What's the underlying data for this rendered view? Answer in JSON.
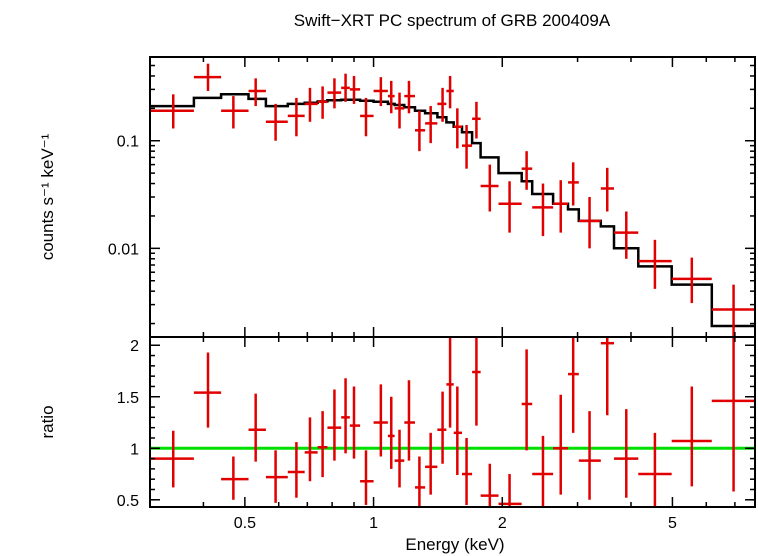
{
  "chart_data": [
    {
      "type": "line",
      "title": "Swift−XRT PC spectrum of GRB 200409A",
      "ylabel": "counts s⁻¹ keV⁻¹",
      "xlabel": "Energy (keV)",
      "x_scale": "log",
      "y_scale": "log",
      "xlim": [
        0.3,
        7.8
      ],
      "ylim": [
        0.0015,
        0.6
      ],
      "y_tick_labels": [
        "0.1",
        "0.01"
      ],
      "y_tick_values": [
        0.1,
        0.01
      ],
      "colors": {
        "data": "#e00000",
        "model": "#000000"
      },
      "data_points": [
        {
          "x": 0.34,
          "xlo": 0.3,
          "xhi": 0.38,
          "y": 0.19,
          "ylo": 0.13,
          "yhi": 0.27
        },
        {
          "x": 0.41,
          "xlo": 0.38,
          "xhi": 0.44,
          "y": 0.39,
          "ylo": 0.29,
          "yhi": 0.52
        },
        {
          "x": 0.47,
          "xlo": 0.44,
          "xhi": 0.51,
          "y": 0.19,
          "ylo": 0.13,
          "yhi": 0.26
        },
        {
          "x": 0.53,
          "xlo": 0.51,
          "xhi": 0.56,
          "y": 0.29,
          "ylo": 0.21,
          "yhi": 0.38
        },
        {
          "x": 0.59,
          "xlo": 0.56,
          "xhi": 0.63,
          "y": 0.15,
          "ylo": 0.1,
          "yhi": 0.22
        },
        {
          "x": 0.66,
          "xlo": 0.63,
          "xhi": 0.69,
          "y": 0.17,
          "ylo": 0.11,
          "yhi": 0.25
        },
        {
          "x": 0.71,
          "xlo": 0.69,
          "xhi": 0.74,
          "y": 0.22,
          "ylo": 0.15,
          "yhi": 0.31
        },
        {
          "x": 0.76,
          "xlo": 0.74,
          "xhi": 0.78,
          "y": 0.23,
          "ylo": 0.16,
          "yhi": 0.32
        },
        {
          "x": 0.81,
          "xlo": 0.78,
          "xhi": 0.84,
          "y": 0.28,
          "ylo": 0.2,
          "yhi": 0.38
        },
        {
          "x": 0.86,
          "xlo": 0.84,
          "xhi": 0.88,
          "y": 0.31,
          "ylo": 0.23,
          "yhi": 0.42
        },
        {
          "x": 0.9,
          "xlo": 0.88,
          "xhi": 0.93,
          "y": 0.3,
          "ylo": 0.22,
          "yhi": 0.4
        },
        {
          "x": 0.96,
          "xlo": 0.93,
          "xhi": 1.0,
          "y": 0.17,
          "ylo": 0.11,
          "yhi": 0.25
        },
        {
          "x": 1.04,
          "xlo": 1.0,
          "xhi": 1.08,
          "y": 0.29,
          "ylo": 0.21,
          "yhi": 0.39
        },
        {
          "x": 1.1,
          "xlo": 1.08,
          "xhi": 1.12,
          "y": 0.26,
          "ylo": 0.18,
          "yhi": 0.36
        },
        {
          "x": 1.15,
          "xlo": 1.12,
          "xhi": 1.18,
          "y": 0.2,
          "ylo": 0.13,
          "yhi": 0.28
        },
        {
          "x": 1.21,
          "xlo": 1.18,
          "xhi": 1.25,
          "y": 0.26,
          "ylo": 0.18,
          "yhi": 0.36
        },
        {
          "x": 1.28,
          "xlo": 1.25,
          "xhi": 1.32,
          "y": 0.125,
          "ylo": 0.08,
          "yhi": 0.19
        },
        {
          "x": 1.36,
          "xlo": 1.32,
          "xhi": 1.41,
          "y": 0.145,
          "ylo": 0.095,
          "yhi": 0.21
        },
        {
          "x": 1.45,
          "xlo": 1.41,
          "xhi": 1.48,
          "y": 0.22,
          "ylo": 0.15,
          "yhi": 0.31
        },
        {
          "x": 1.51,
          "xlo": 1.48,
          "xhi": 1.54,
          "y": 0.29,
          "ylo": 0.2,
          "yhi": 0.4
        },
        {
          "x": 1.57,
          "xlo": 1.54,
          "xhi": 1.61,
          "y": 0.135,
          "ylo": 0.085,
          "yhi": 0.2
        },
        {
          "x": 1.65,
          "xlo": 1.61,
          "xhi": 1.7,
          "y": 0.09,
          "ylo": 0.055,
          "yhi": 0.14
        },
        {
          "x": 1.74,
          "xlo": 1.7,
          "xhi": 1.78,
          "y": 0.16,
          "ylo": 0.105,
          "yhi": 0.23
        },
        {
          "x": 1.87,
          "xlo": 1.78,
          "xhi": 1.96,
          "y": 0.038,
          "ylo": 0.022,
          "yhi": 0.06
        },
        {
          "x": 2.08,
          "xlo": 1.96,
          "xhi": 2.22,
          "y": 0.026,
          "ylo": 0.014,
          "yhi": 0.042
        },
        {
          "x": 2.28,
          "xlo": 2.22,
          "xhi": 2.35,
          "y": 0.055,
          "ylo": 0.035,
          "yhi": 0.08
        },
        {
          "x": 2.49,
          "xlo": 2.35,
          "xhi": 2.63,
          "y": 0.024,
          "ylo": 0.013,
          "yhi": 0.04
        },
        {
          "x": 2.74,
          "xlo": 2.63,
          "xhi": 2.85,
          "y": 0.026,
          "ylo": 0.014,
          "yhi": 0.043
        },
        {
          "x": 2.93,
          "xlo": 2.85,
          "xhi": 3.02,
          "y": 0.041,
          "ylo": 0.025,
          "yhi": 0.063
        },
        {
          "x": 3.2,
          "xlo": 3.02,
          "xhi": 3.4,
          "y": 0.018,
          "ylo": 0.01,
          "yhi": 0.03
        },
        {
          "x": 3.52,
          "xlo": 3.4,
          "xhi": 3.65,
          "y": 0.036,
          "ylo": 0.022,
          "yhi": 0.056
        },
        {
          "x": 3.9,
          "xlo": 3.65,
          "xhi": 4.16,
          "y": 0.014,
          "ylo": 0.008,
          "yhi": 0.022
        },
        {
          "x": 4.55,
          "xlo": 4.16,
          "xhi": 4.98,
          "y": 0.0076,
          "ylo": 0.0042,
          "yhi": 0.012
        },
        {
          "x": 5.55,
          "xlo": 4.98,
          "xhi": 6.18,
          "y": 0.0052,
          "ylo": 0.0031,
          "yhi": 0.0082
        },
        {
          "x": 6.95,
          "xlo": 6.18,
          "xhi": 7.8,
          "y": 0.0027,
          "ylo": 0.0015,
          "yhi": 0.0046
        }
      ],
      "model_step": {
        "edges": [
          0.3,
          0.38,
          0.44,
          0.51,
          0.56,
          0.63,
          0.69,
          0.74,
          0.78,
          0.84,
          0.88,
          0.93,
          1.0,
          1.08,
          1.12,
          1.18,
          1.25,
          1.32,
          1.41,
          1.48,
          1.54,
          1.61,
          1.7,
          1.78,
          1.96,
          2.22,
          2.35,
          2.63,
          2.85,
          3.02,
          3.4,
          3.65,
          4.16,
          4.98,
          6.18,
          7.8
        ],
        "values": [
          0.21,
          0.25,
          0.27,
          0.245,
          0.21,
          0.22,
          0.225,
          0.232,
          0.238,
          0.24,
          0.24,
          0.235,
          0.23,
          0.22,
          0.215,
          0.205,
          0.19,
          0.18,
          0.165,
          0.148,
          0.135,
          0.12,
          0.095,
          0.07,
          0.05,
          0.042,
          0.032,
          0.026,
          0.023,
          0.018,
          0.016,
          0.01,
          0.0068,
          0.0046,
          0.0019
        ]
      }
    },
    {
      "type": "scatter",
      "ylabel": "ratio",
      "xlabel": "Energy (keV)",
      "x_scale": "log",
      "xlim": [
        0.3,
        7.8
      ],
      "ylim": [
        0.43,
        2.08
      ],
      "y_tick_labels": [
        "2",
        "1.5",
        "1",
        "0.5"
      ],
      "y_tick_values": [
        2,
        1.5,
        1,
        0.5
      ],
      "x_tick_labels": [
        "0.5",
        "1",
        "2",
        "5"
      ],
      "x_tick_values": [
        0.5,
        1,
        2,
        5
      ],
      "reference_line": 1,
      "colors": {
        "data": "#e00000",
        "reference": "#00e000"
      },
      "ratio_points": [
        {
          "x": 0.34,
          "y": 0.9,
          "ylo": 0.62,
          "yhi": 1.17
        },
        {
          "x": 0.41,
          "y": 1.54,
          "ylo": 1.2,
          "yhi": 1.93
        },
        {
          "x": 0.47,
          "y": 0.7,
          "ylo": 0.5,
          "yhi": 0.92
        },
        {
          "x": 0.53,
          "y": 1.18,
          "ylo": 0.87,
          "yhi": 1.53
        },
        {
          "x": 0.59,
          "y": 0.72,
          "ylo": 0.47,
          "yhi": 0.98
        },
        {
          "x": 0.66,
          "y": 0.77,
          "ylo": 0.52,
          "yhi": 1.06
        },
        {
          "x": 0.71,
          "y": 0.96,
          "ylo": 0.68,
          "yhi": 1.3
        },
        {
          "x": 0.76,
          "y": 1.01,
          "ylo": 0.72,
          "yhi": 1.36
        },
        {
          "x": 0.81,
          "y": 1.2,
          "ylo": 0.88,
          "yhi": 1.57
        },
        {
          "x": 0.86,
          "y": 1.3,
          "ylo": 0.95,
          "yhi": 1.68
        },
        {
          "x": 0.9,
          "y": 1.22,
          "ylo": 0.9,
          "yhi": 1.6
        },
        {
          "x": 0.96,
          "y": 0.68,
          "ylo": 0.45,
          "yhi": 0.98
        },
        {
          "x": 1.04,
          "y": 1.25,
          "ylo": 0.92,
          "yhi": 1.62
        },
        {
          "x": 1.1,
          "y": 1.12,
          "ylo": 0.8,
          "yhi": 1.5
        },
        {
          "x": 1.15,
          "y": 0.88,
          "ylo": 0.62,
          "yhi": 1.18
        },
        {
          "x": 1.21,
          "y": 1.25,
          "ylo": 0.88,
          "yhi": 1.66
        },
        {
          "x": 1.28,
          "y": 0.62,
          "ylo": 0.43,
          "yhi": 0.92
        },
        {
          "x": 1.36,
          "y": 0.82,
          "ylo": 0.55,
          "yhi": 1.15
        },
        {
          "x": 1.45,
          "y": 1.18,
          "ylo": 0.85,
          "yhi": 1.55
        },
        {
          "x": 1.51,
          "y": 1.62,
          "ylo": 1.2,
          "yhi": 2.08
        },
        {
          "x": 1.57,
          "y": 1.15,
          "ylo": 0.74,
          "yhi": 1.6
        },
        {
          "x": 1.65,
          "y": 0.75,
          "ylo": 0.45,
          "yhi": 1.1
        },
        {
          "x": 1.74,
          "y": 1.74,
          "ylo": 1.22,
          "yhi": 2.08
        },
        {
          "x": 1.87,
          "y": 0.54,
          "ylo": 0.43,
          "yhi": 0.85
        },
        {
          "x": 2.08,
          "y": 0.46,
          "ylo": 0.43,
          "yhi": 0.75
        },
        {
          "x": 2.28,
          "y": 1.43,
          "ylo": 0.98,
          "yhi": 1.96
        },
        {
          "x": 2.49,
          "y": 0.75,
          "ylo": 0.43,
          "yhi": 1.12
        },
        {
          "x": 2.74,
          "y": 1.0,
          "ylo": 0.55,
          "yhi": 1.52
        },
        {
          "x": 2.93,
          "y": 1.72,
          "ylo": 1.15,
          "yhi": 2.08
        },
        {
          "x": 3.2,
          "y": 0.88,
          "ylo": 0.5,
          "yhi": 1.36
        },
        {
          "x": 3.52,
          "y": 2.02,
          "ylo": 1.32,
          "yhi": 2.08
        },
        {
          "x": 3.9,
          "y": 0.9,
          "ylo": 0.52,
          "yhi": 1.38
        },
        {
          "x": 4.55,
          "y": 0.75,
          "ylo": 0.43,
          "yhi": 1.15
        },
        {
          "x": 5.55,
          "y": 1.07,
          "ylo": 0.63,
          "yhi": 1.6
        },
        {
          "x": 6.95,
          "y": 1.46,
          "ylo": 0.58,
          "yhi": 2.08
        }
      ]
    }
  ]
}
